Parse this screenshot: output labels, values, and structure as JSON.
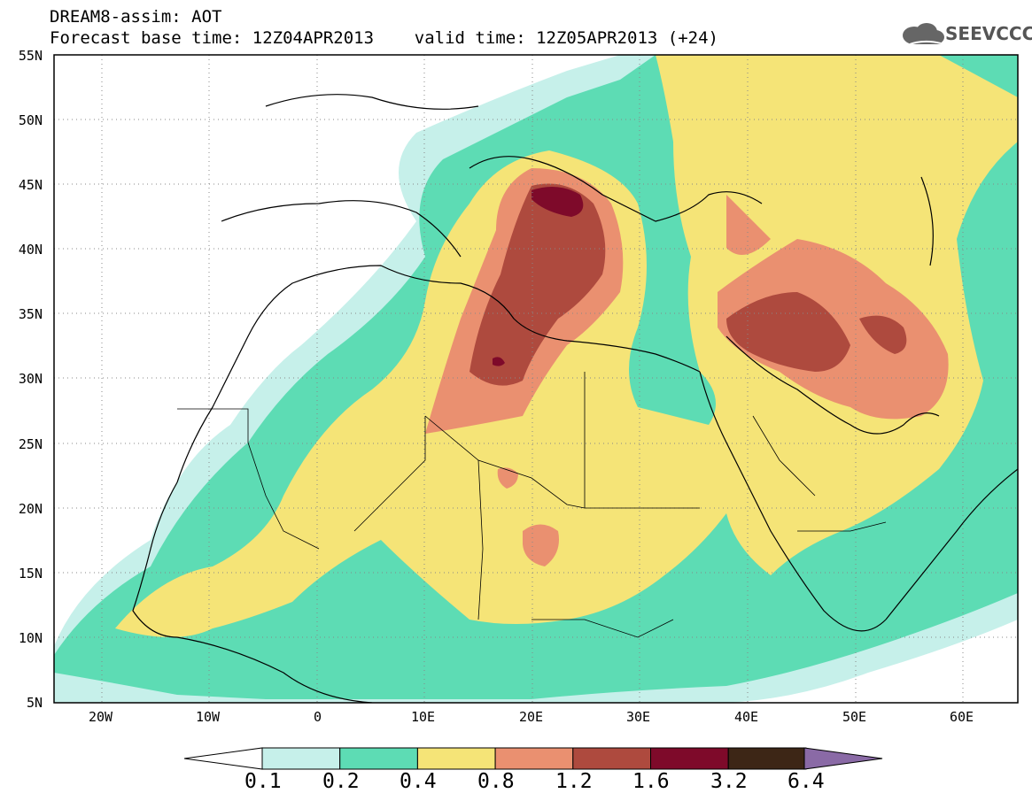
{
  "title": {
    "line1": "DREAM8-assim: AOT",
    "line2": "Forecast base time: 12Z04APR2013    valid time: 12Z05APR2013 (+24)"
  },
  "logo": {
    "text": "SEEVCCC",
    "icon": "cloud-icon"
  },
  "map": {
    "lon_range": [
      -25,
      65
    ],
    "lat_range": [
      5,
      55
    ],
    "lat_labels": [
      "55N",
      "50N",
      "45N",
      "40N",
      "35N",
      "30N",
      "25N",
      "20N",
      "15N",
      "10N",
      "5N"
    ],
    "lon_labels": [
      "20W",
      "10W",
      "0",
      "10E",
      "20E",
      "30E",
      "40E",
      "50E",
      "60E"
    ],
    "grid": "dotted"
  },
  "colorbar": {
    "labels": [
      "0.1",
      "0.2",
      "0.4",
      "0.8",
      "1.2",
      "1.6",
      "3.2",
      "6.4"
    ],
    "colors": [
      "#c6f0ea",
      "#5ddcb4",
      "#f5e477",
      "#ea9070",
      "#ae4a3e",
      "#7e0a2a",
      "#3d2616",
      "#8a6aa6"
    ]
  }
}
